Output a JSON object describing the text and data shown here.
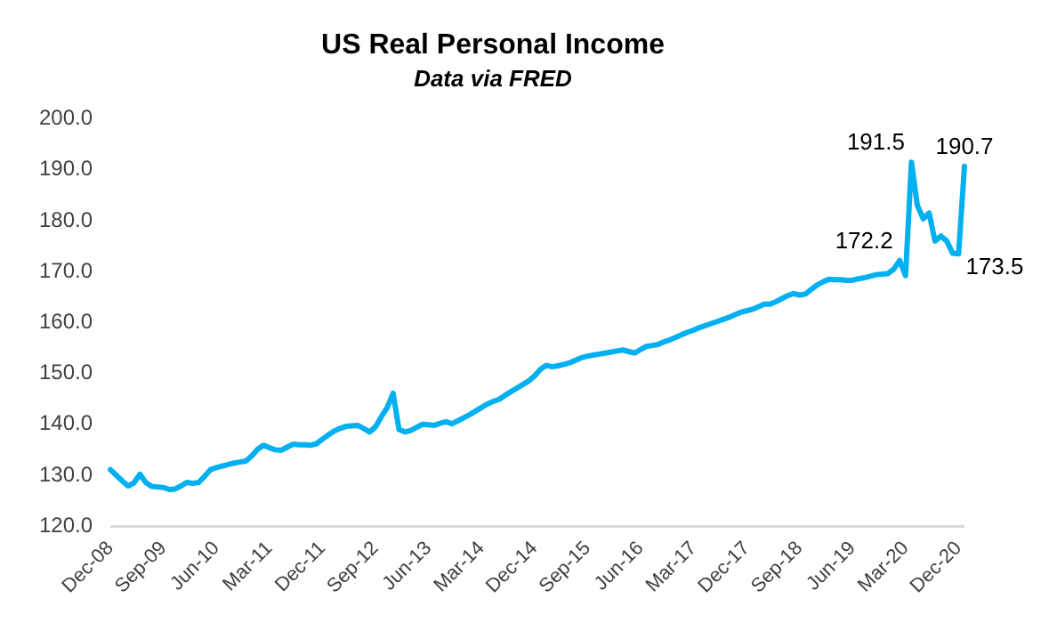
{
  "chart_data": {
    "type": "line",
    "title": "US Real Personal Income",
    "subtitle": "Data via FRED",
    "categories": [
      "Dec-08",
      null,
      null,
      null,
      null,
      null,
      null,
      null,
      null,
      "Sep-09",
      null,
      null,
      null,
      null,
      null,
      null,
      null,
      null,
      "Jun-10",
      null,
      null,
      null,
      null,
      null,
      null,
      null,
      null,
      "Mar-11",
      null,
      null,
      null,
      null,
      null,
      null,
      null,
      null,
      "Dec-11",
      null,
      null,
      null,
      null,
      null,
      null,
      null,
      null,
      "Sep-12",
      null,
      null,
      null,
      null,
      null,
      null,
      null,
      null,
      "Jun-13",
      null,
      null,
      null,
      null,
      null,
      null,
      null,
      null,
      "Mar-14",
      null,
      null,
      null,
      null,
      null,
      null,
      null,
      null,
      "Dec-14",
      null,
      null,
      null,
      null,
      null,
      null,
      null,
      null,
      "Sep-15",
      null,
      null,
      null,
      null,
      null,
      null,
      null,
      null,
      "Jun-16",
      null,
      null,
      null,
      null,
      null,
      null,
      null,
      null,
      "Mar-17",
      null,
      null,
      null,
      null,
      null,
      null,
      null,
      null,
      "Dec-17",
      null,
      null,
      null,
      null,
      null,
      null,
      null,
      null,
      "Sep-18",
      null,
      null,
      null,
      null,
      null,
      null,
      null,
      null,
      "Jun-19",
      null,
      null,
      null,
      null,
      null,
      null,
      null,
      null,
      "Mar-20",
      null,
      null,
      null,
      null,
      null,
      null,
      null,
      null,
      "Dec-20",
      null
    ],
    "series": [
      {
        "color": "#00b0f0",
        "values": [
          131.1,
          130,
          128.9,
          127.9,
          128.5,
          130.2,
          128.6,
          127.8,
          127.7,
          127.6,
          127.2,
          127.3,
          127.9,
          128.6,
          128.4,
          128.6,
          129.8,
          131.1,
          131.5,
          131.8,
          132.1,
          132.4,
          132.6,
          132.8,
          133.8,
          135.1,
          135.9,
          135.4,
          135,
          134.9,
          135.5,
          136.1,
          136,
          136,
          135.9,
          136.2,
          137.1,
          137.9,
          138.7,
          139.2,
          139.6,
          139.7,
          139.8,
          139.2,
          138.5,
          139.5,
          141.5,
          143.3,
          146.1,
          139,
          138.5,
          138.8,
          139.4,
          140,
          139.9,
          139.8,
          140.2,
          140.5,
          140.1,
          140.7,
          141.3,
          141.9,
          142.6,
          143.3,
          144,
          144.5,
          144.9,
          145.7,
          146.4,
          147.1,
          147.8,
          148.5,
          149.5,
          150.8,
          151.6,
          151.3,
          151.5,
          151.8,
          152.1,
          152.6,
          153.1,
          153.4,
          153.6,
          153.8,
          154,
          154.2,
          154.4,
          154.6,
          154.3,
          154,
          154.7,
          155.3,
          155.5,
          155.7,
          156.2,
          156.6,
          157.1,
          157.6,
          158.1,
          158.5,
          159,
          159.4,
          159.8,
          160.2,
          160.6,
          161,
          161.5,
          162,
          162.3,
          162.6,
          163.1,
          163.6,
          163.6,
          164.1,
          164.7,
          165.3,
          165.7,
          165.4,
          165.6,
          166.5,
          167.4,
          168,
          168.5,
          168.4,
          168.4,
          168.3,
          168.3,
          168.6,
          168.8,
          169.1,
          169.4,
          169.5,
          169.6,
          170.5,
          172.2,
          169.2,
          191.5,
          183,
          180.4,
          181.5,
          176,
          177,
          176,
          173.6,
          173.5,
          190.7
        ],
        "value_labels": [
          null,
          null,
          null,
          null,
          null,
          null,
          null,
          null,
          null,
          null,
          null,
          null,
          null,
          null,
          null,
          null,
          null,
          null,
          null,
          null,
          null,
          null,
          null,
          null,
          null,
          null,
          null,
          null,
          null,
          null,
          null,
          null,
          null,
          null,
          null,
          null,
          null,
          null,
          null,
          null,
          null,
          null,
          null,
          null,
          null,
          null,
          null,
          null,
          null,
          null,
          null,
          null,
          null,
          null,
          null,
          null,
          null,
          null,
          null,
          null,
          null,
          null,
          null,
          null,
          null,
          null,
          null,
          null,
          null,
          null,
          null,
          null,
          null,
          null,
          null,
          null,
          null,
          null,
          null,
          null,
          null,
          null,
          null,
          null,
          null,
          null,
          null,
          null,
          null,
          null,
          null,
          null,
          null,
          null,
          null,
          null,
          null,
          null,
          null,
          null,
          null,
          null,
          null,
          null,
          null,
          null,
          null,
          null,
          null,
          null,
          null,
          null,
          null,
          null,
          null,
          null,
          null,
          null,
          null,
          null,
          null,
          null,
          null,
          null,
          null,
          null,
          null,
          null,
          null,
          null,
          null,
          null,
          null,
          null,
          "172.2",
          null,
          "191.5",
          null,
          null,
          null,
          null,
          null,
          null,
          null,
          "173.5",
          "190.7"
        ]
      }
    ],
    "ylim": [
      120,
      200
    ],
    "yticks": [
      {
        "value": 120,
        "label": "120.0"
      },
      {
        "value": 130,
        "label": "130.0"
      },
      {
        "value": 140,
        "label": "140.0"
      },
      {
        "value": 150,
        "label": "150.0"
      },
      {
        "value": 160,
        "label": "160.0"
      },
      {
        "value": 170,
        "label": "170.0"
      },
      {
        "value": 180,
        "label": "180.0"
      },
      {
        "value": 190,
        "label": "190.0"
      },
      {
        "value": 200,
        "label": "200.0"
      }
    ],
    "marker": "none",
    "line_style": "solid"
  }
}
